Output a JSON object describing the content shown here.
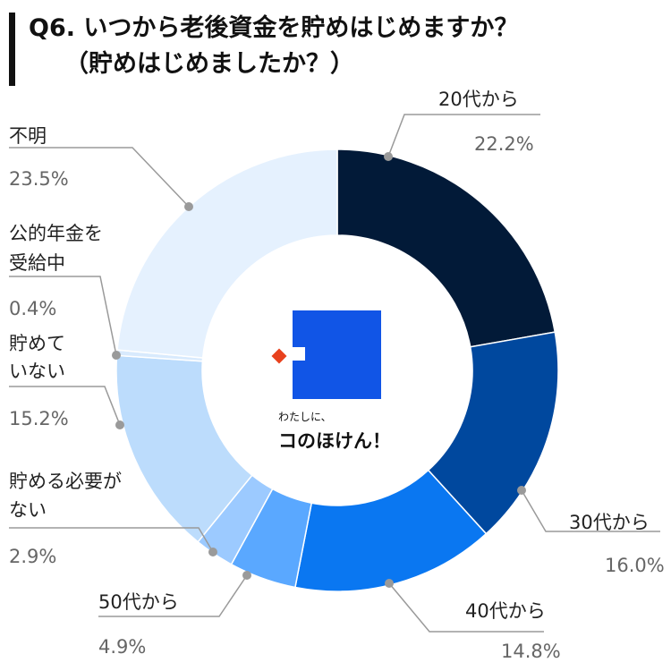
{
  "title": {
    "line1": "Q6. いつから老後資金を貯めはじめますか？",
    "line2": "（貯めはじめましたか？）"
  },
  "brand": {
    "small": "わたしに、",
    "big": "コのほけん！"
  },
  "colors": {
    "slices": [
      "#021a38",
      "#00489e",
      "#0a77f1",
      "#5aa8ff",
      "#9ccaff",
      "#bcdcfc",
      "#d8eafd",
      "#e5f1fe"
    ],
    "logo_blue": "#1155e6",
    "logo_red": "#e8411d"
  },
  "chart_data": {
    "type": "pie",
    "title": "Q6. いつから老後資金を貯めはじめますか？（貯めはじめましたか？）",
    "categories": [
      "20代から",
      "30代から",
      "40代から",
      "50代から",
      "貯める必要がない",
      "貯めていない",
      "公的年金を受給中",
      "不明"
    ],
    "values": [
      22.2,
      16.0,
      14.8,
      4.9,
      2.9,
      15.2,
      0.4,
      23.5
    ],
    "label_lines": [
      [
        "20代から"
      ],
      [
        "30代から"
      ],
      [
        "40代から"
      ],
      [
        "50代から"
      ],
      [
        "貯める必要が",
        "ない"
      ],
      [
        "貯めて",
        "いない"
      ],
      [
        "公的年金を",
        "受給中"
      ],
      [
        "不明"
      ]
    ],
    "value_labels": [
      "22.2%",
      "16.0%",
      "14.8%",
      "4.9%",
      "2.9%",
      "15.2%",
      "0.4%",
      "23.5%"
    ],
    "unit": "%",
    "donut": true,
    "legend": "none"
  }
}
